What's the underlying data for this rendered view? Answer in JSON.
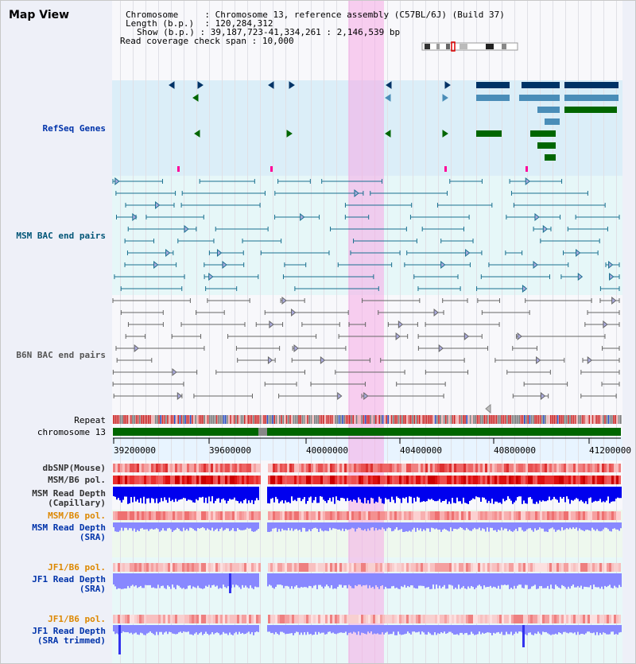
{
  "header": {
    "title": "Map View",
    "chromosome_label": "Chromosome",
    "chromosome_value": "Chromosome 13, reference assembly (C57BL/6J) (Build 37)",
    "length_label": "Length (b.p.)",
    "length_value": "120,284,312",
    "show_label": "Show (b.p.)",
    "show_value": "39,187,723-41,334,261 : 2,146,539 bp",
    "coverage_label": "Read coverage check span",
    "coverage_value": "10,000"
  },
  "tracks": {
    "refseq": "RefSeq Genes",
    "msm_bac": "MSM BAC end pairs",
    "b6n_bac": "B6N BAC end pairs",
    "repeat": "Repeat",
    "chromosome": "chromosome 13",
    "dbsnp": "dbSNP(Mouse)",
    "msm_pol": "MSM/B6 pol.",
    "msm_depth_cap_1": "MSM Read Depth",
    "msm_depth_cap_2": "(Capillary)",
    "msm_pol_sra": "MSM/B6 pol.",
    "msm_depth_sra_1": "MSM Read Depth",
    "msm_depth_sra_2": "(SRA)",
    "jf1_pol": "JF1/B6 pol.",
    "jf1_depth_1": "JF1 Read Depth",
    "jf1_depth_2": "(SRA)",
    "jf1_pol_trim": "JF1/B6 pol.",
    "jf1_trim_1": "JF1 Read Depth",
    "jf1_trim_2": "(SRA trimmed)"
  },
  "axis_ticks": [
    "39200000",
    "39600000",
    "40000000",
    "40400000",
    "40800000",
    "41200000"
  ],
  "colors": {
    "highlight": "#f5aae6",
    "refseq_navy": "#003366",
    "refseq_blue": "#4a8db8",
    "refseq_green": "#006600",
    "msm_bac": "#1a7090",
    "b6n_bac": "#666666",
    "chromosome_bar": "#006600",
    "depth_blue": "#0000ee",
    "depth_light": "#8888ff"
  }
}
